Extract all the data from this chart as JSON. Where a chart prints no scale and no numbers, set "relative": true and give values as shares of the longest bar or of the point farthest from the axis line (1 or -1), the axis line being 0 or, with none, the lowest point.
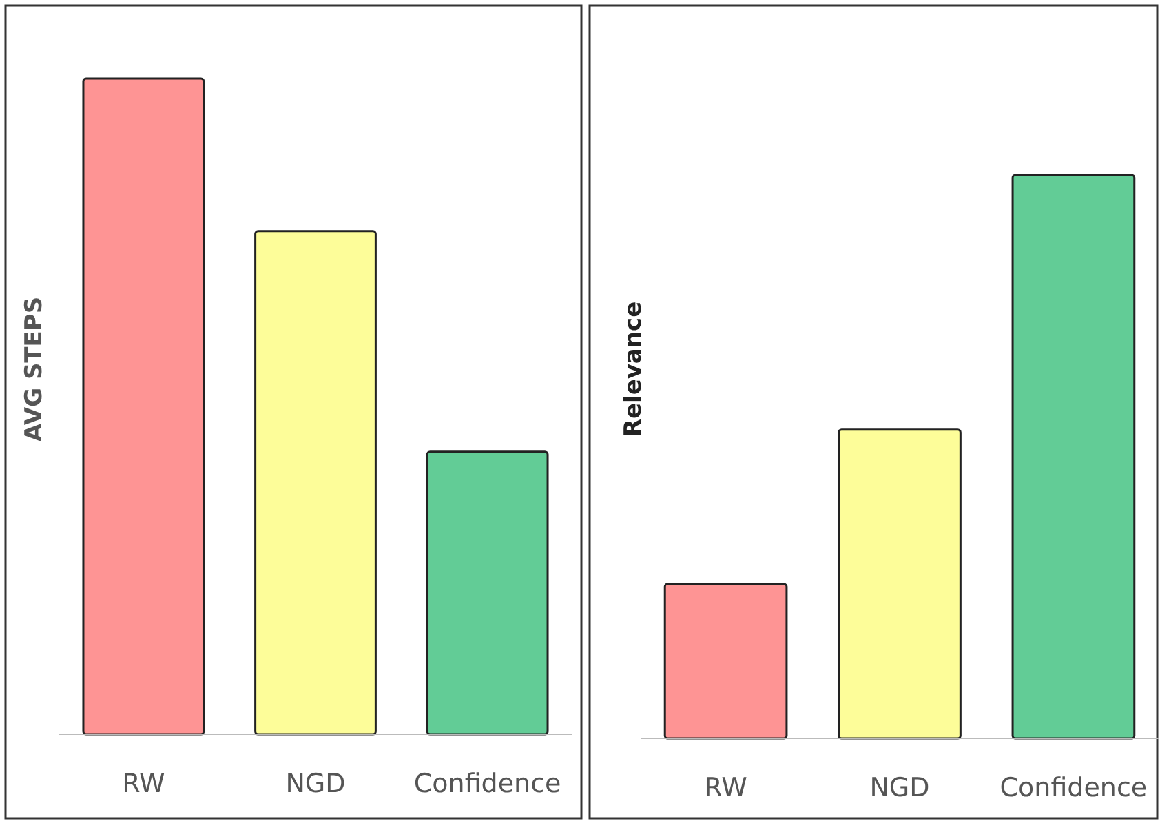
{
  "chart_data": [
    {
      "type": "bar",
      "ylabel": "AVG STEPS",
      "categories": [
        "RW",
        "NGD",
        "Confidence"
      ],
      "values": [
        1,
        0.767,
        0.431
      ],
      "colors": [
        "#fe9494",
        "#fdfd99",
        "#62cc96"
      ],
      "relative": true
    },
    {
      "type": "bar",
      "ylabel": "Relevance",
      "categories": [
        "RW",
        "NGD",
        "Confidence"
      ],
      "values": [
        0.274,
        0.548,
        1
      ],
      "colors": [
        "#fe9494",
        "#fdfd99",
        "#62cc96"
      ],
      "relative": true
    }
  ]
}
